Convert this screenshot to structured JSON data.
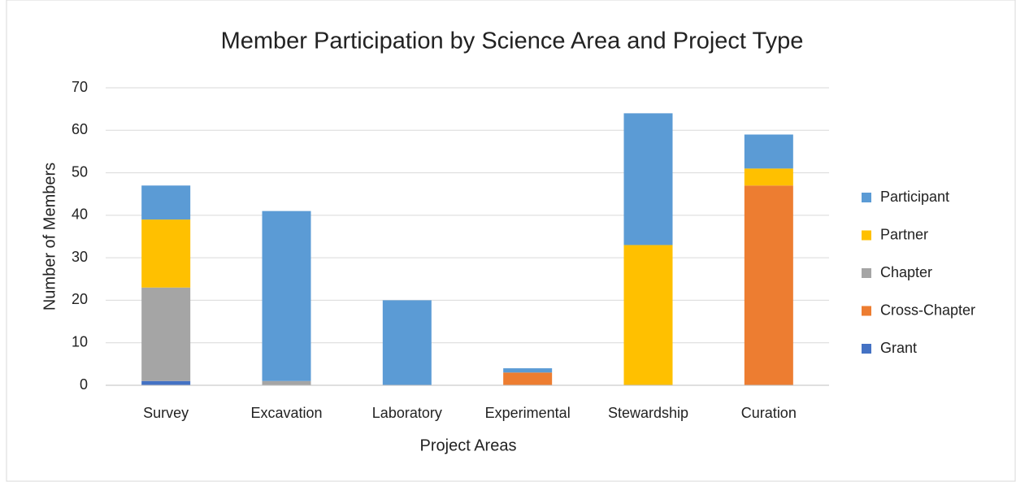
{
  "chart_data": {
    "type": "stacked_bar",
    "title": "Member Participation by Science Area and Project Type",
    "x_label": "Project Areas",
    "y_label": "Number of Members",
    "categories": [
      "Survey",
      "Excavation",
      "Laboratory",
      "Experimental",
      "Stewardship",
      "Curation"
    ],
    "series": [
      {
        "name": "Grant",
        "color": "#4472c4",
        "values": [
          1,
          0,
          0,
          0,
          0,
          0
        ]
      },
      {
        "name": "Cross-Chapter",
        "color": "#ed7d31",
        "values": [
          0,
          0,
          0,
          3,
          0,
          47
        ]
      },
      {
        "name": "Chapter",
        "color": "#a5a5a5",
        "values": [
          22,
          1,
          0,
          0,
          0,
          0
        ]
      },
      {
        "name": "Partner",
        "color": "#ffc000",
        "values": [
          16,
          0,
          0,
          0,
          33,
          4
        ]
      },
      {
        "name": "Participant",
        "color": "#5b9bd5",
        "values": [
          8,
          40,
          20,
          1,
          31,
          8
        ]
      }
    ],
    "ylim": [
      0,
      70
    ],
    "yticks": [
      0,
      10,
      20,
      30,
      40,
      50,
      60,
      70
    ],
    "grid": true,
    "legend": "right"
  }
}
